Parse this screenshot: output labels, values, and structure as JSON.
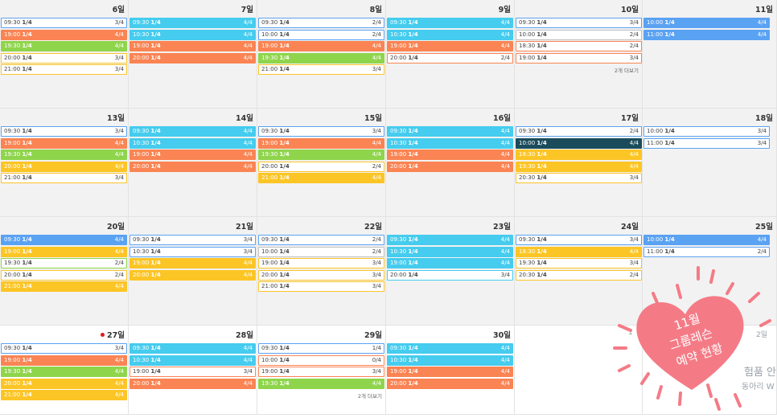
{
  "days": [
    {
      "label": "6일",
      "past": true,
      "events": [
        {
          "time": "09:30",
          "cap": "1/4",
          "count": "3/4",
          "style": "w-b"
        },
        {
          "time": "19:00",
          "cap": "1/4",
          "count": "4/4",
          "style": "orange"
        },
        {
          "time": "19:30",
          "cap": "1/4",
          "count": "4/4",
          "style": "green"
        },
        {
          "time": "20:00",
          "cap": "1/4",
          "count": "3/4",
          "style": "w-y"
        },
        {
          "time": "21:00",
          "cap": "1/4",
          "count": "3/4",
          "style": "w-y"
        }
      ]
    },
    {
      "label": "7일",
      "past": true,
      "events": [
        {
          "time": "09:30",
          "cap": "1/4",
          "count": "4/4",
          "style": "cyan"
        },
        {
          "time": "10:30",
          "cap": "1/4",
          "count": "4/4",
          "style": "cyan"
        },
        {
          "time": "19:00",
          "cap": "1/4",
          "count": "4/4",
          "style": "orange"
        },
        {
          "time": "20:00",
          "cap": "1/4",
          "count": "4/4",
          "style": "orange"
        }
      ]
    },
    {
      "label": "8일",
      "past": true,
      "events": [
        {
          "time": "09:30",
          "cap": "1/4",
          "count": "2/4",
          "style": "w-b"
        },
        {
          "time": "10:00",
          "cap": "1/4",
          "count": "2/4",
          "style": "w-b"
        },
        {
          "time": "19:00",
          "cap": "1/4",
          "count": "4/4",
          "style": "orange"
        },
        {
          "time": "19:30",
          "cap": "1/4",
          "count": "4/4",
          "style": "green"
        },
        {
          "time": "21:00",
          "cap": "1/4",
          "count": "3/4",
          "style": "w-y"
        }
      ]
    },
    {
      "label": "9일",
      "past": true,
      "events": [
        {
          "time": "09:30",
          "cap": "1/4",
          "count": "4/4",
          "style": "cyan"
        },
        {
          "time": "10:30",
          "cap": "1/4",
          "count": "4/4",
          "style": "cyan"
        },
        {
          "time": "19:00",
          "cap": "1/4",
          "count": "4/4",
          "style": "orange"
        },
        {
          "time": "20:00",
          "cap": "1/4",
          "count": "2/4",
          "style": "w-o"
        }
      ]
    },
    {
      "label": "10일",
      "past": true,
      "events": [
        {
          "time": "09:30",
          "cap": "1/4",
          "count": "3/4",
          "style": "w-b"
        },
        {
          "time": "10:00",
          "cap": "1/4",
          "count": "2/4",
          "style": ""
        },
        {
          "time": "18:30",
          "cap": "1/4",
          "count": "2/4",
          "style": "w-o"
        },
        {
          "time": "19:00",
          "cap": "1/4",
          "count": "3/4",
          "style": "w-o"
        }
      ],
      "more": "2개 더보기"
    },
    {
      "label": "11일",
      "past": true,
      "events": [
        {
          "time": "10:00",
          "cap": "1/4",
          "count": "4/4",
          "style": "blue"
        },
        {
          "time": "11:00",
          "cap": "1/4",
          "count": "4/4",
          "style": "blue"
        }
      ]
    },
    {
      "label": "13일",
      "past": true,
      "events": [
        {
          "time": "09:30",
          "cap": "1/4",
          "count": "3/4",
          "style": "w-b"
        },
        {
          "time": "19:00",
          "cap": "1/4",
          "count": "4/4",
          "style": "orange"
        },
        {
          "time": "19:30",
          "cap": "1/4",
          "count": "4/4",
          "style": "green"
        },
        {
          "time": "20:00",
          "cap": "1/4",
          "count": "4/4",
          "style": "yellow"
        },
        {
          "time": "21:00",
          "cap": "1/4",
          "count": "3/4",
          "style": "w-y"
        }
      ]
    },
    {
      "label": "14일",
      "past": true,
      "events": [
        {
          "time": "09:30",
          "cap": "1/4",
          "count": "4/4",
          "style": "cyan"
        },
        {
          "time": "10:30",
          "cap": "1/4",
          "count": "4/4",
          "style": "cyan"
        },
        {
          "time": "19:00",
          "cap": "1/4",
          "count": "4/4",
          "style": "orange"
        },
        {
          "time": "20:00",
          "cap": "1/4",
          "count": "4/4",
          "style": "orange"
        }
      ]
    },
    {
      "label": "15일",
      "past": true,
      "events": [
        {
          "time": "09:30",
          "cap": "1/4",
          "count": "3/4",
          "style": "w-b"
        },
        {
          "time": "19:00",
          "cap": "1/4",
          "count": "4/4",
          "style": "orange"
        },
        {
          "time": "19:30",
          "cap": "1/4",
          "count": "4/4",
          "style": "green"
        },
        {
          "time": "20:00",
          "cap": "1/4",
          "count": "2/4",
          "style": "w-y"
        },
        {
          "time": "21:00",
          "cap": "1/4",
          "count": "4/4",
          "style": "yellow"
        }
      ]
    },
    {
      "label": "16일",
      "past": true,
      "events": [
        {
          "time": "09:30",
          "cap": "1/4",
          "count": "4/4",
          "style": "cyan"
        },
        {
          "time": "10:30",
          "cap": "1/4",
          "count": "4/4",
          "style": "cyan"
        },
        {
          "time": "19:00",
          "cap": "1/4",
          "count": "4/4",
          "style": "orange"
        },
        {
          "time": "20:00",
          "cap": "1/4",
          "count": "4/4",
          "style": "orange"
        }
      ]
    },
    {
      "label": "17일",
      "past": true,
      "events": [
        {
          "time": "09:30",
          "cap": "1/4",
          "count": "2/4",
          "style": "w-b"
        },
        {
          "time": "10:00",
          "cap": "1/4",
          "count": "4/4",
          "style": "navy"
        },
        {
          "time": "18:30",
          "cap": "1/4",
          "count": "4/4",
          "style": "yellow"
        },
        {
          "time": "19:30",
          "cap": "1/4",
          "count": "4/4",
          "style": "yellow"
        },
        {
          "time": "20:30",
          "cap": "1/4",
          "count": "3/4",
          "style": "w-y"
        }
      ]
    },
    {
      "label": "18일",
      "past": true,
      "events": [
        {
          "time": "10:00",
          "cap": "1/4",
          "count": "3/4",
          "style": "w-b"
        },
        {
          "time": "11:00",
          "cap": "1/4",
          "count": "3/4",
          "style": "w-b"
        }
      ]
    },
    {
      "label": "20일",
      "past": true,
      "events": [
        {
          "time": "09:30",
          "cap": "1/4",
          "count": "4/4",
          "style": "blue"
        },
        {
          "time": "19:00",
          "cap": "1/4",
          "count": "4/4",
          "style": "yellow"
        },
        {
          "time": "19:30",
          "cap": "1/4",
          "count": "2/4",
          "style": "w-g"
        },
        {
          "time": "20:00",
          "cap": "1/4",
          "count": "2/4",
          "style": "w-y"
        },
        {
          "time": "21:00",
          "cap": "1/4",
          "count": "4/4",
          "style": "yellow"
        }
      ]
    },
    {
      "label": "21일",
      "past": true,
      "events": [
        {
          "time": "09:30",
          "cap": "1/4",
          "count": "3/4",
          "style": "w-b"
        },
        {
          "time": "10:30",
          "cap": "1/4",
          "count": "3/4",
          "style": "w-b"
        },
        {
          "time": "19:00",
          "cap": "1/4",
          "count": "4/4",
          "style": "yellow"
        },
        {
          "time": "20:00",
          "cap": "1/4",
          "count": "4/4",
          "style": "yellow"
        }
      ]
    },
    {
      "label": "22일",
      "past": true,
      "events": [
        {
          "time": "09:30",
          "cap": "1/4",
          "count": "2/4",
          "style": "w-b"
        },
        {
          "time": "10:00",
          "cap": "1/4",
          "count": "2/4",
          "style": ""
        },
        {
          "time": "19:00",
          "cap": "1/4",
          "count": "3/4",
          "style": "w-y"
        },
        {
          "time": "20:00",
          "cap": "1/4",
          "count": "3/4",
          "style": "w-y"
        },
        {
          "time": "21:00",
          "cap": "1/4",
          "count": "3/4",
          "style": "w-y"
        }
      ]
    },
    {
      "label": "23일",
      "past": true,
      "events": [
        {
          "time": "09:30",
          "cap": "1/4",
          "count": "4/4",
          "style": "cyan"
        },
        {
          "time": "10:30",
          "cap": "1/4",
          "count": "4/4",
          "style": "cyan"
        },
        {
          "time": "19:00",
          "cap": "1/4",
          "count": "4/4",
          "style": "cyan"
        },
        {
          "time": "20:00",
          "cap": "1/4",
          "count": "3/4",
          "style": "w-c"
        }
      ]
    },
    {
      "label": "24일",
      "past": true,
      "events": [
        {
          "time": "09:30",
          "cap": "1/4",
          "count": "3/4",
          "style": "w-b"
        },
        {
          "time": "18:30",
          "cap": "1/4",
          "count": "4/4",
          "style": "yellow"
        },
        {
          "time": "19:30",
          "cap": "1/4",
          "count": "3/4",
          "style": "w-y"
        },
        {
          "time": "20:30",
          "cap": "1/4",
          "count": "2/4",
          "style": "w-y"
        }
      ]
    },
    {
      "label": "25일",
      "past": true,
      "events": [
        {
          "time": "10:00",
          "cap": "1/4",
          "count": "4/4",
          "style": "blue"
        },
        {
          "time": "11:00",
          "cap": "1/4",
          "count": "2/4",
          "style": "w-b"
        }
      ]
    },
    {
      "label": "27일",
      "past": false,
      "today": true,
      "events": [
        {
          "time": "09:30",
          "cap": "1/4",
          "count": "3/4",
          "style": "w-b"
        },
        {
          "time": "19:00",
          "cap": "1/4",
          "count": "4/4",
          "style": "orange"
        },
        {
          "time": "19:30",
          "cap": "1/4",
          "count": "4/4",
          "style": "green"
        },
        {
          "time": "20:00",
          "cap": "1/4",
          "count": "4/4",
          "style": "yellow"
        },
        {
          "time": "21:00",
          "cap": "1/4",
          "count": "4/4",
          "style": "yellow"
        }
      ]
    },
    {
      "label": "28일",
      "past": false,
      "events": [
        {
          "time": "09:30",
          "cap": "1/4",
          "count": "4/4",
          "style": "cyan"
        },
        {
          "time": "10:30",
          "cap": "1/4",
          "count": "4/4",
          "style": "cyan"
        },
        {
          "time": "19:00",
          "cap": "1/4",
          "count": "3/4",
          "style": "w-o"
        },
        {
          "time": "20:00",
          "cap": "1/4",
          "count": "4/4",
          "style": "orange"
        }
      ]
    },
    {
      "label": "29일",
      "past": false,
      "events": [
        {
          "time": "09:30",
          "cap": "1/4",
          "count": "1/4",
          "style": "w-b"
        },
        {
          "time": "10:00",
          "cap": "1/4",
          "count": "0/4",
          "style": "w-o"
        },
        {
          "time": "19:00",
          "cap": "1/4",
          "count": "3/4",
          "style": "w-o"
        },
        {
          "time": "19:30",
          "cap": "1/4",
          "count": "4/4",
          "style": "green"
        }
      ],
      "more": "2개 더보기"
    },
    {
      "label": "30일",
      "past": false,
      "events": [
        {
          "time": "09:30",
          "cap": "1/4",
          "count": "4/4",
          "style": "cyan"
        },
        {
          "time": "10:30",
          "cap": "1/4",
          "count": "4/4",
          "style": "cyan"
        },
        {
          "time": "19:00",
          "cap": "1/4",
          "count": "4/4",
          "style": "orange"
        },
        {
          "time": "20:00",
          "cap": "1/4",
          "count": "4/4",
          "style": "orange"
        }
      ]
    },
    {
      "label": "",
      "past": false,
      "events": []
    },
    {
      "label": "",
      "past": false,
      "events": []
    }
  ],
  "sticker": {
    "line1": "11월",
    "line2": "그룹레슨",
    "line3": "예약 현황",
    "color": "#f47b86"
  },
  "peek": {
    "t1": "1",
    "t2": "2일",
    "t3": "험품 안",
    "t4": "동아리 W"
  }
}
